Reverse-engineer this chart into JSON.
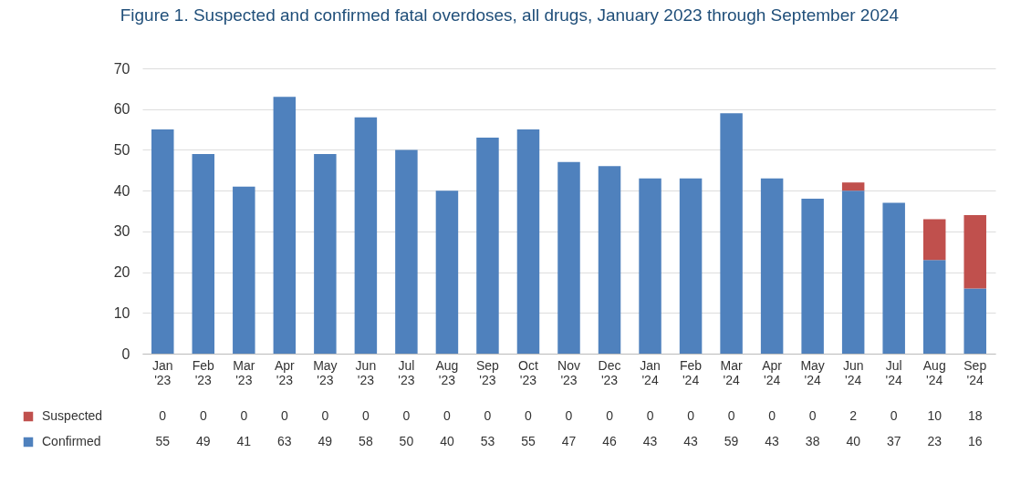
{
  "chart_data": {
    "type": "bar",
    "title": "Figure 1. Suspected and confirmed fatal overdoses, all drugs, January 2023 through September 2024",
    "categories": [
      "Jan '23",
      "Feb '23",
      "Mar '23",
      "Apr '23",
      "May '23",
      "Jun '23",
      "Jul '23",
      "Aug '23",
      "Sep '23",
      "Oct '23",
      "Nov '23",
      "Dec '23",
      "Jan '24",
      "Feb '24",
      "Mar '24",
      "Apr '24",
      "May '24",
      "Jun '24",
      "Jul '24",
      "Aug '24",
      "Sep '24"
    ],
    "series": [
      {
        "name": "Confirmed",
        "color": "#4f81bd",
        "values": [
          55,
          49,
          41,
          63,
          49,
          58,
          50,
          40,
          53,
          55,
          47,
          46,
          43,
          43,
          59,
          43,
          38,
          40,
          37,
          23,
          16
        ]
      },
      {
        "name": "Suspected",
        "color": "#c0504d",
        "values": [
          0,
          0,
          0,
          0,
          0,
          0,
          0,
          0,
          0,
          0,
          0,
          0,
          0,
          0,
          0,
          0,
          0,
          2,
          0,
          10,
          18
        ]
      }
    ],
    "stacked": true,
    "ylim": [
      0,
      70
    ],
    "yticks": [
      0,
      10,
      20,
      30,
      40,
      50,
      60,
      70
    ],
    "grid": "y",
    "legend": "bottom left",
    "data_labels": true
  }
}
